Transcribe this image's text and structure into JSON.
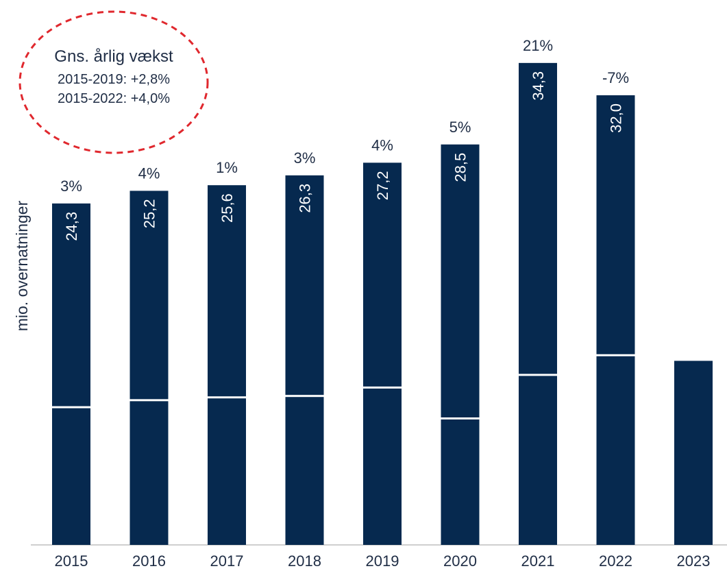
{
  "chart_data": {
    "type": "stacked-bar",
    "y_label": "mio. overnatninger",
    "annotation": [
      "Gns. årlig vækst",
      "2015-2019: +2,8%",
      "2015-2022: +4,0%"
    ],
    "categories": [
      "2015",
      "2016",
      "2017",
      "2018",
      "2019",
      "2020",
      "2021",
      "2022",
      "2023"
    ],
    "series": [
      {
        "color": "#06294f",
        "values": [
          9.8,
          10.3,
          10.5,
          10.6,
          11.2,
          9.0,
          12.1,
          13.5,
          13.1
        ]
      },
      {
        "color": "#06294f",
        "values": [
          14.5,
          14.9,
          15.1,
          15.7,
          16.0,
          19.5,
          22.2,
          18.5,
          null
        ]
      }
    ],
    "totals": [
      24.3,
      25.2,
      25.6,
      26.3,
      27.2,
      28.5,
      34.3,
      32.0,
      null
    ],
    "total_labels": [
      "24,3",
      "25,2",
      "25,6",
      "26,3",
      "27,2",
      "28,5",
      "34,3",
      "32,0",
      null
    ],
    "growth_labels": [
      "3%",
      "4%",
      "1%",
      "3%",
      "4%",
      "5%",
      "21%",
      "-7%",
      null
    ],
    "ylim": [
      0,
      38
    ]
  }
}
